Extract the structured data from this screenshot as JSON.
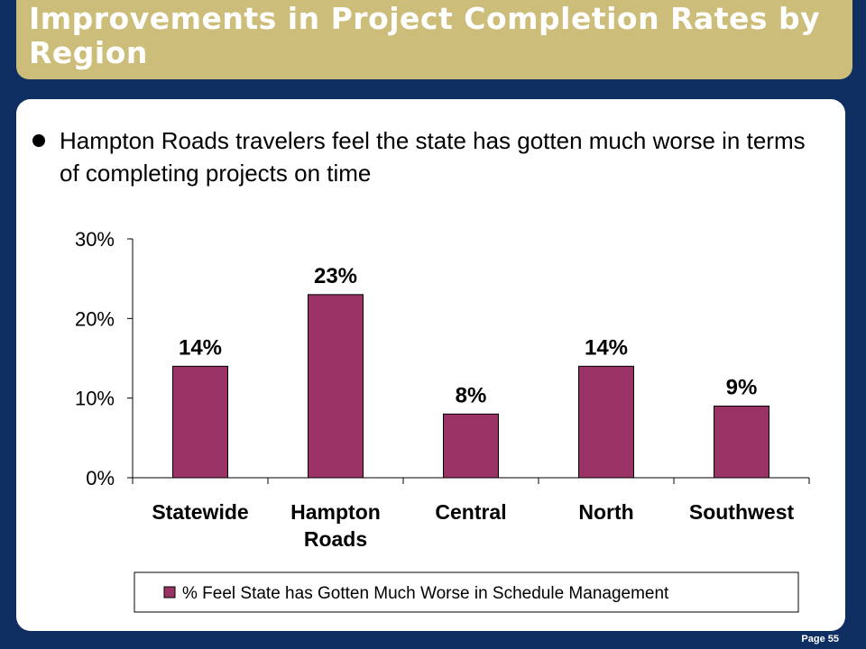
{
  "slide": {
    "title": "Improvements in Project Completion Rates by Region",
    "bullet": "Hampton Roads travelers feel the state has gotten much worse in terms of completing projects on time",
    "page_number": "Page 55"
  },
  "colors": {
    "background": "#0f2f63",
    "title_bar": "#cdbd7a",
    "bar_fill": "#993366"
  },
  "chart_data": {
    "type": "bar",
    "title": "",
    "xlabel": "",
    "ylabel": "",
    "categories": [
      "Statewide",
      "Hampton\nRoads",
      "Central",
      "North",
      "Southwest"
    ],
    "series": [
      {
        "name": "% Feel State has Gotten Much Worse in Schedule Management",
        "values": [
          14,
          23,
          8,
          14,
          9
        ],
        "data_labels": [
          "14%",
          "23%",
          "8%",
          "14%",
          "9%"
        ],
        "color": "#993366"
      }
    ],
    "ylim": [
      0,
      30
    ],
    "yticks": [
      0,
      10,
      20,
      30
    ],
    "ytick_labels": [
      "0%",
      "10%",
      "20%",
      "30%"
    ],
    "grid": false,
    "legend_position": "bottom"
  }
}
